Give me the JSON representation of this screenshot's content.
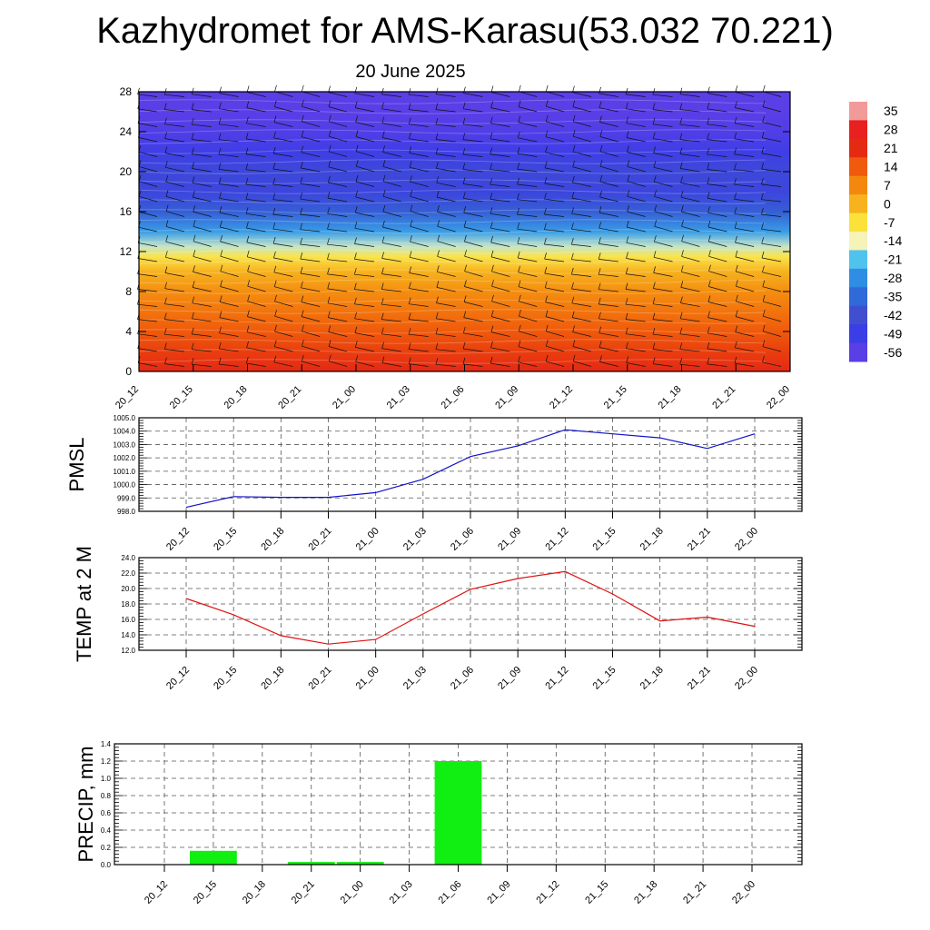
{
  "header": {
    "title": "Kazhydromet for AMS-Karasu(53.032 70.221)",
    "subtitle": "20 June 2025"
  },
  "chart_data": [
    {
      "type": "heatmap",
      "title": "",
      "ylim": [
        0,
        28
      ],
      "yticks": [
        "0",
        "4",
        "8",
        "12",
        "16",
        "20",
        "24",
        "28"
      ],
      "xticks": [
        "20_12",
        "20_15",
        "20_18",
        "20_21",
        "21_00",
        "21_03",
        "21_06",
        "21_09",
        "21_12",
        "21_15",
        "21_18",
        "21_21",
        "22_00"
      ],
      "colorbar": {
        "labels": [
          "35",
          "28",
          "21",
          "14",
          "7",
          "0",
          "-7",
          "-14",
          "-21",
          "-28",
          "-35",
          "-42",
          "-49",
          "-56"
        ],
        "values": [
          35,
          28,
          21,
          14,
          7,
          0,
          -7,
          -14,
          -21,
          -28,
          -35,
          -42,
          -49,
          -56
        ],
        "colors": [
          "#f29a9a",
          "#e82020",
          "#e52a12",
          "#ef5a0c",
          "#f4880e",
          "#f7b21e",
          "#fbe23a",
          "#f5f3b8",
          "#4fc2ee",
          "#2f8ee4",
          "#2f6ad8",
          "#3f4fd0",
          "#3a3ee6",
          "#5a3ee6"
        ]
      },
      "levels": [
        {
          "y": 0,
          "temp": 22
        },
        {
          "y": 2,
          "temp": 18
        },
        {
          "y": 4,
          "temp": 14
        },
        {
          "y": 6,
          "temp": 10
        },
        {
          "y": 8,
          "temp": 6
        },
        {
          "y": 10,
          "temp": 0
        },
        {
          "y": 11.5,
          "temp": -8
        },
        {
          "y": 12.5,
          "temp": -16
        },
        {
          "y": 14,
          "temp": -26
        },
        {
          "y": 16,
          "temp": -38
        },
        {
          "y": 18,
          "temp": -46
        },
        {
          "y": 20,
          "temp": -45
        },
        {
          "y": 22,
          "temp": -50
        },
        {
          "y": 24,
          "temp": -54
        },
        {
          "y": 26,
          "temp": -56
        },
        {
          "y": 28,
          "temp": -56
        }
      ]
    },
    {
      "type": "line",
      "ylabel": "PMSL",
      "ylim": [
        998.0,
        1005.0
      ],
      "yticks": [
        "998.0",
        "999.0",
        "1000.0",
        "1001.0",
        "1002.0",
        "1003.0",
        "1004.0",
        "1005.0"
      ],
      "categories": [
        "20_12",
        "20_15",
        "20_18",
        "20_21",
        "21_00",
        "21_03",
        "21_06",
        "21_09",
        "21_12",
        "21_15",
        "21_18",
        "21_21",
        "22_00"
      ],
      "values": [
        998.3,
        999.1,
        999.05,
        999.05,
        999.4,
        1000.4,
        1002.1,
        1002.9,
        1004.1,
        1003.8,
        1003.5,
        1002.7,
        1003.8
      ],
      "color": "#1010c8"
    },
    {
      "type": "line",
      "ylabel": "TEMP at 2 M",
      "ylim": [
        12.0,
        24.0
      ],
      "yticks": [
        "12.0",
        "14.0",
        "16.0",
        "18.0",
        "20.0",
        "22.0",
        "24.0"
      ],
      "categories": [
        "20_12",
        "20_15",
        "20_18",
        "20_21",
        "21_00",
        "21_03",
        "21_06",
        "21_09",
        "21_12",
        "21_15",
        "21_18",
        "21_21",
        "22_00"
      ],
      "values": [
        18.7,
        16.6,
        13.9,
        12.8,
        13.4,
        16.7,
        19.9,
        21.3,
        22.2,
        19.3,
        15.8,
        16.3,
        15.1
      ],
      "color": "#e01010"
    },
    {
      "type": "bar",
      "ylabel": "PRECIP, mm",
      "ylim": [
        0,
        1.4
      ],
      "yticks": [
        "0.0",
        "0.2",
        "0.4",
        "0.6",
        "0.8",
        "1.0",
        "1.2",
        "1.4"
      ],
      "categories": [
        "20_12",
        "20_15",
        "20_18",
        "20_21",
        "21_00",
        "21_03",
        "21_06",
        "21_09",
        "21_12",
        "21_15",
        "21_18",
        "21_21",
        "22_00"
      ],
      "values": [
        0,
        0.16,
        0,
        0.03,
        0.03,
        0,
        1.2,
        0,
        0,
        0,
        0,
        0,
        0
      ],
      "color": "#11ee11"
    }
  ]
}
